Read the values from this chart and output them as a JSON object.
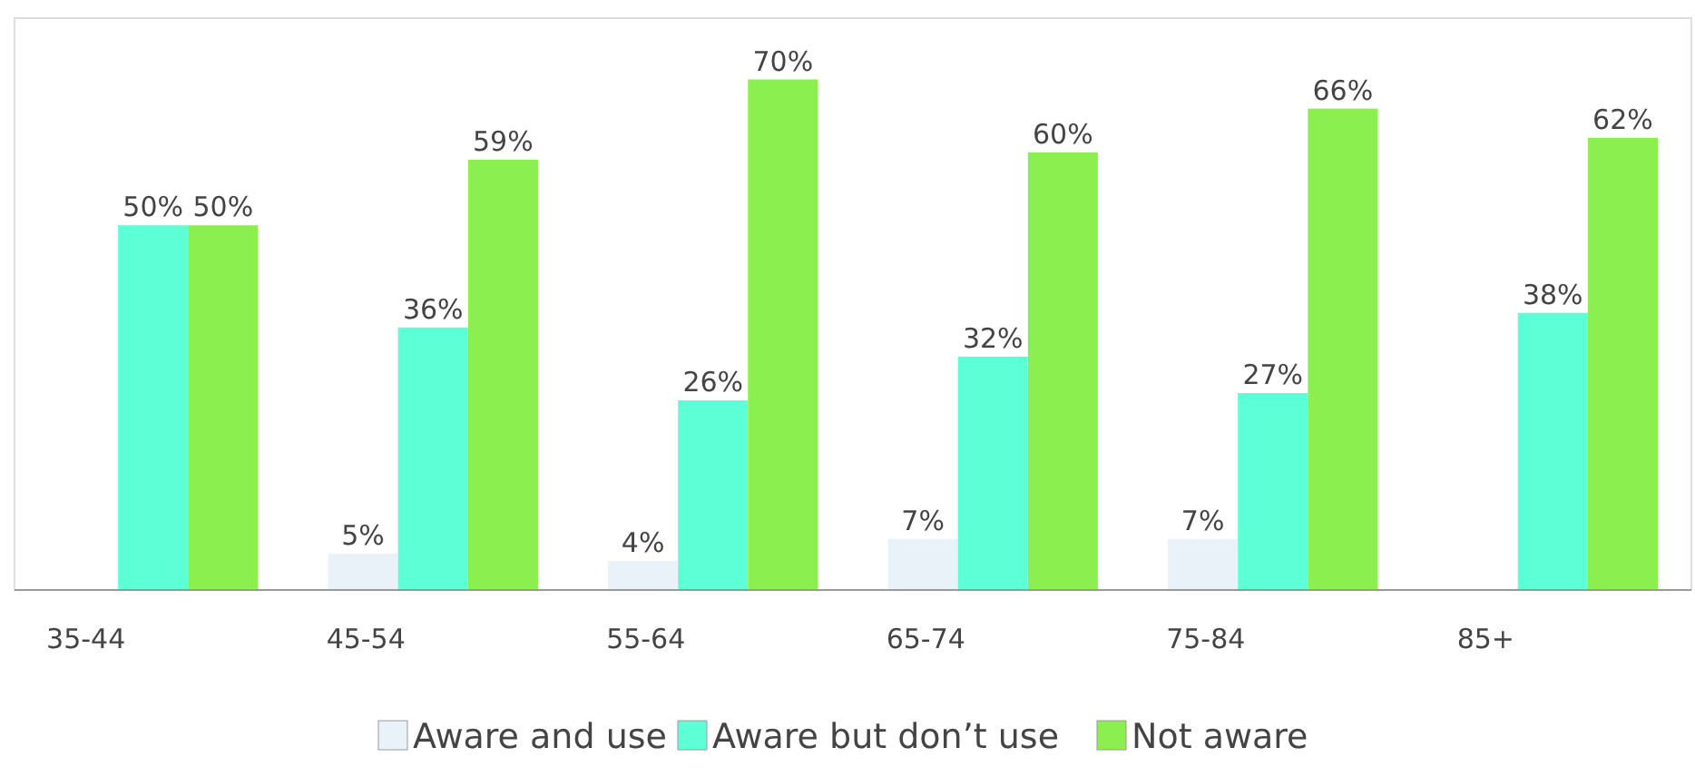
{
  "chart_data": {
    "type": "bar",
    "categories": [
      "35-44",
      "45-54",
      "55-64",
      "65-74",
      "75-84",
      "85+"
    ],
    "series": [
      {
        "name": "Aware and use",
        "color": "#e9f2f8",
        "values": [
          null,
          5,
          4,
          7,
          7,
          null
        ],
        "value_labels": [
          null,
          "5%",
          "4%",
          "7%",
          "7%",
          null
        ]
      },
      {
        "name": "Aware but don’t use",
        "color": "#5dffd6",
        "values": [
          50,
          36,
          26,
          32,
          27,
          38
        ],
        "value_labels": [
          "50%",
          "36%",
          "26%",
          "32%",
          "27%",
          "38%"
        ]
      },
      {
        "name": "Not aware",
        "color": "#8aef4f",
        "values": [
          50,
          59,
          70,
          60,
          66,
          62
        ],
        "value_labels": [
          "50%",
          "59%",
          "70%",
          "60%",
          "66%",
          "62%"
        ]
      }
    ],
    "legend": "bottom",
    "tick_labels": "x"
  }
}
